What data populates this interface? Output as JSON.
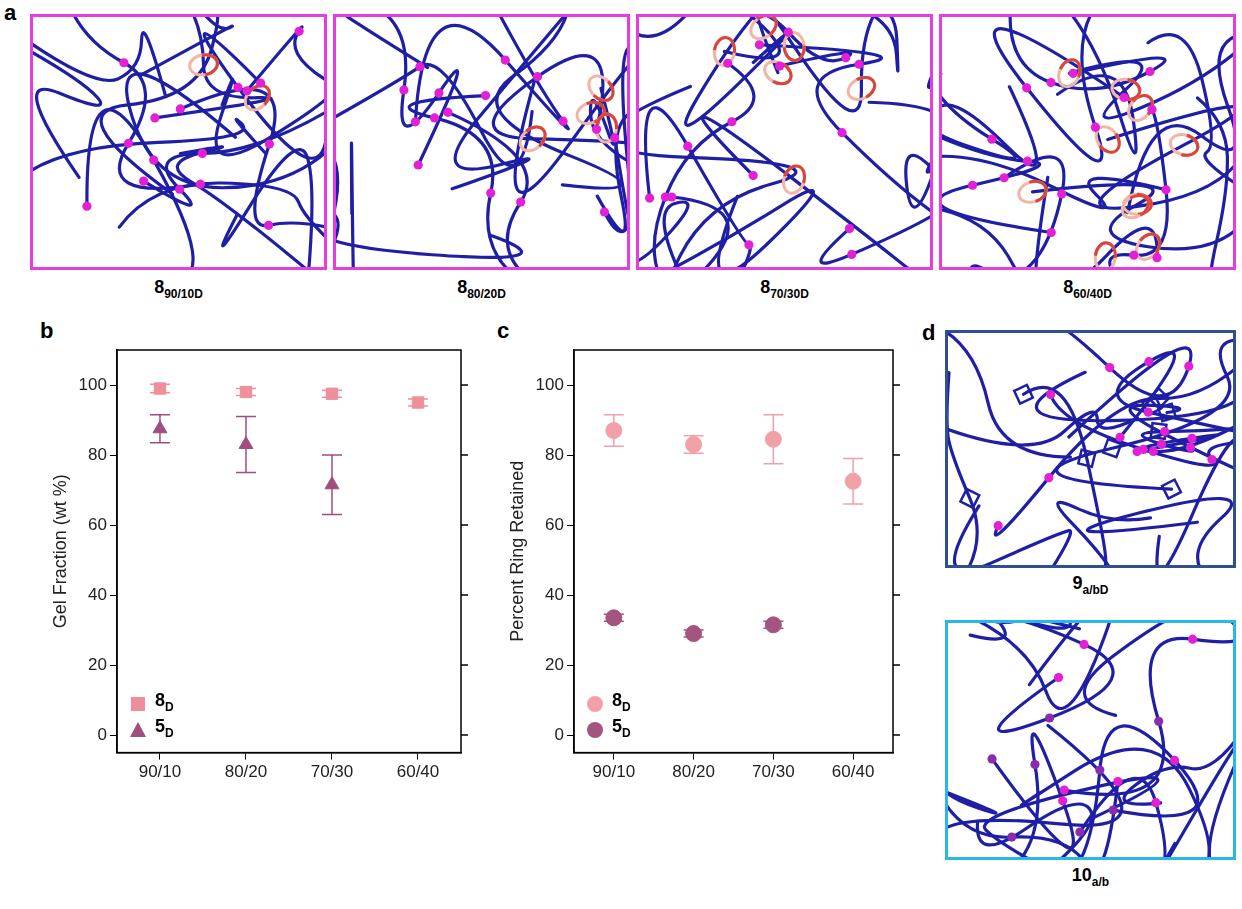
{
  "panels": {
    "a": {
      "letter": "a",
      "labels": [
        {
          "text": "8",
          "subscript": "90/10D"
        },
        {
          "text": "8",
          "subscript": "80/20D"
        },
        {
          "text": "8",
          "subscript": "70/30D"
        },
        {
          "text": "8",
          "subscript": "60/40D"
        }
      ]
    },
    "d": {
      "letter": "d",
      "labels": [
        {
          "text": "9",
          "subscript": "a/bD"
        },
        {
          "text": "10",
          "subscript": "a/b"
        }
      ]
    }
  },
  "chart_data": [
    {
      "panel": "b",
      "type": "scatter",
      "y_label": "Gel Fraction (wt %)",
      "categories": [
        "90/10",
        "80/20",
        "70/30",
        "60/40"
      ],
      "ylim": [
        -5,
        110
      ],
      "yticks": [
        0,
        20,
        40,
        60,
        80,
        100
      ],
      "grid": false,
      "legend": "lower left",
      "series": [
        {
          "name": "8",
          "name_subscript": "D",
          "color": "#ef8f9c",
          "marker": "square",
          "values": [
            99,
            98,
            97.5,
            95
          ],
          "errors": [
            1.2,
            1,
            1,
            1
          ]
        },
        {
          "name": "5",
          "name_subscript": "D",
          "color": "#9e4f7d",
          "marker": "triangle",
          "values": [
            87.5,
            83,
            71.5,
            null
          ],
          "errors": [
            4,
            8,
            8.5,
            null
          ]
        }
      ]
    },
    {
      "panel": "c",
      "type": "scatter",
      "y_label": "Percent Ring Retained",
      "categories": [
        "90/10",
        "80/20",
        "70/30",
        "60/40"
      ],
      "ylim": [
        -5,
        110
      ],
      "yticks": [
        0,
        20,
        40,
        60,
        80,
        100
      ],
      "grid": false,
      "legend": "lower left",
      "series": [
        {
          "name": "8",
          "name_subscript": "D",
          "color": "#f2a0a8",
          "marker": "circle",
          "values": [
            87,
            83,
            84.5,
            72.5
          ],
          "errors": [
            4.5,
            2.5,
            7,
            6.5
          ]
        },
        {
          "name": "5",
          "name_subscript": "D",
          "color": "#a3557f",
          "marker": "circle",
          "values": [
            33.5,
            29,
            31.5,
            null
          ],
          "errors": [
            1,
            1,
            1,
            null
          ]
        }
      ]
    }
  ]
}
